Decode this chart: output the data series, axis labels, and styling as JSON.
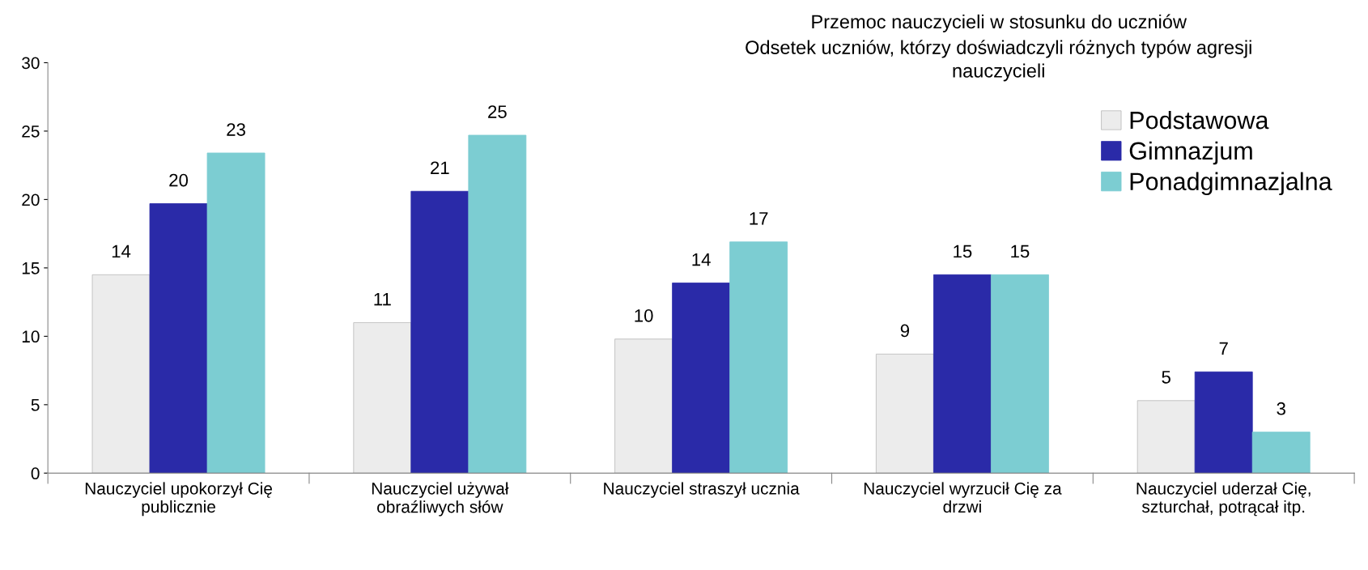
{
  "chart_data": {
    "type": "bar",
    "title": "Przemoc nauczycieli w stosunku do uczniów",
    "subtitle": "Odsetek uczniów, którzy doświadczyli różnych typów agresji\nnauczycieli",
    "categories": [
      "Nauczyciel upokorzył Cię\npublicznie",
      "Nauczyciel używał\nobraźliwych słów",
      "Nauczyciel straszył ucznia",
      "Nauczyciel wyrzucił Cię za\ndrzwi",
      "Nauczyciel uderzał Cię,\nszturchał, potrącał itp."
    ],
    "series": [
      {
        "name": "Podstawowa",
        "color": "#ececec",
        "values": [
          14.5,
          11.0,
          9.8,
          8.7,
          5.3
        ],
        "value_labels": [
          "14",
          "11",
          "10",
          "9",
          "5"
        ]
      },
      {
        "name": "Gimnazjum",
        "color": "#2a2aa8",
        "values": [
          19.7,
          20.6,
          13.9,
          14.5,
          7.4
        ],
        "value_labels": [
          "20",
          "21",
          "14",
          "15",
          "7"
        ]
      },
      {
        "name": "Ponadgimnazjalna",
        "color": "#7ccdd2",
        "values": [
          23.4,
          24.7,
          16.9,
          14.5,
          3.0
        ],
        "value_labels": [
          "23",
          "25",
          "17",
          "15",
          "3"
        ]
      }
    ],
    "ylim": [
      0,
      30
    ],
    "yticks": [
      0,
      5,
      10,
      15,
      20,
      25,
      30
    ],
    "grid": false,
    "legend": "right"
  }
}
